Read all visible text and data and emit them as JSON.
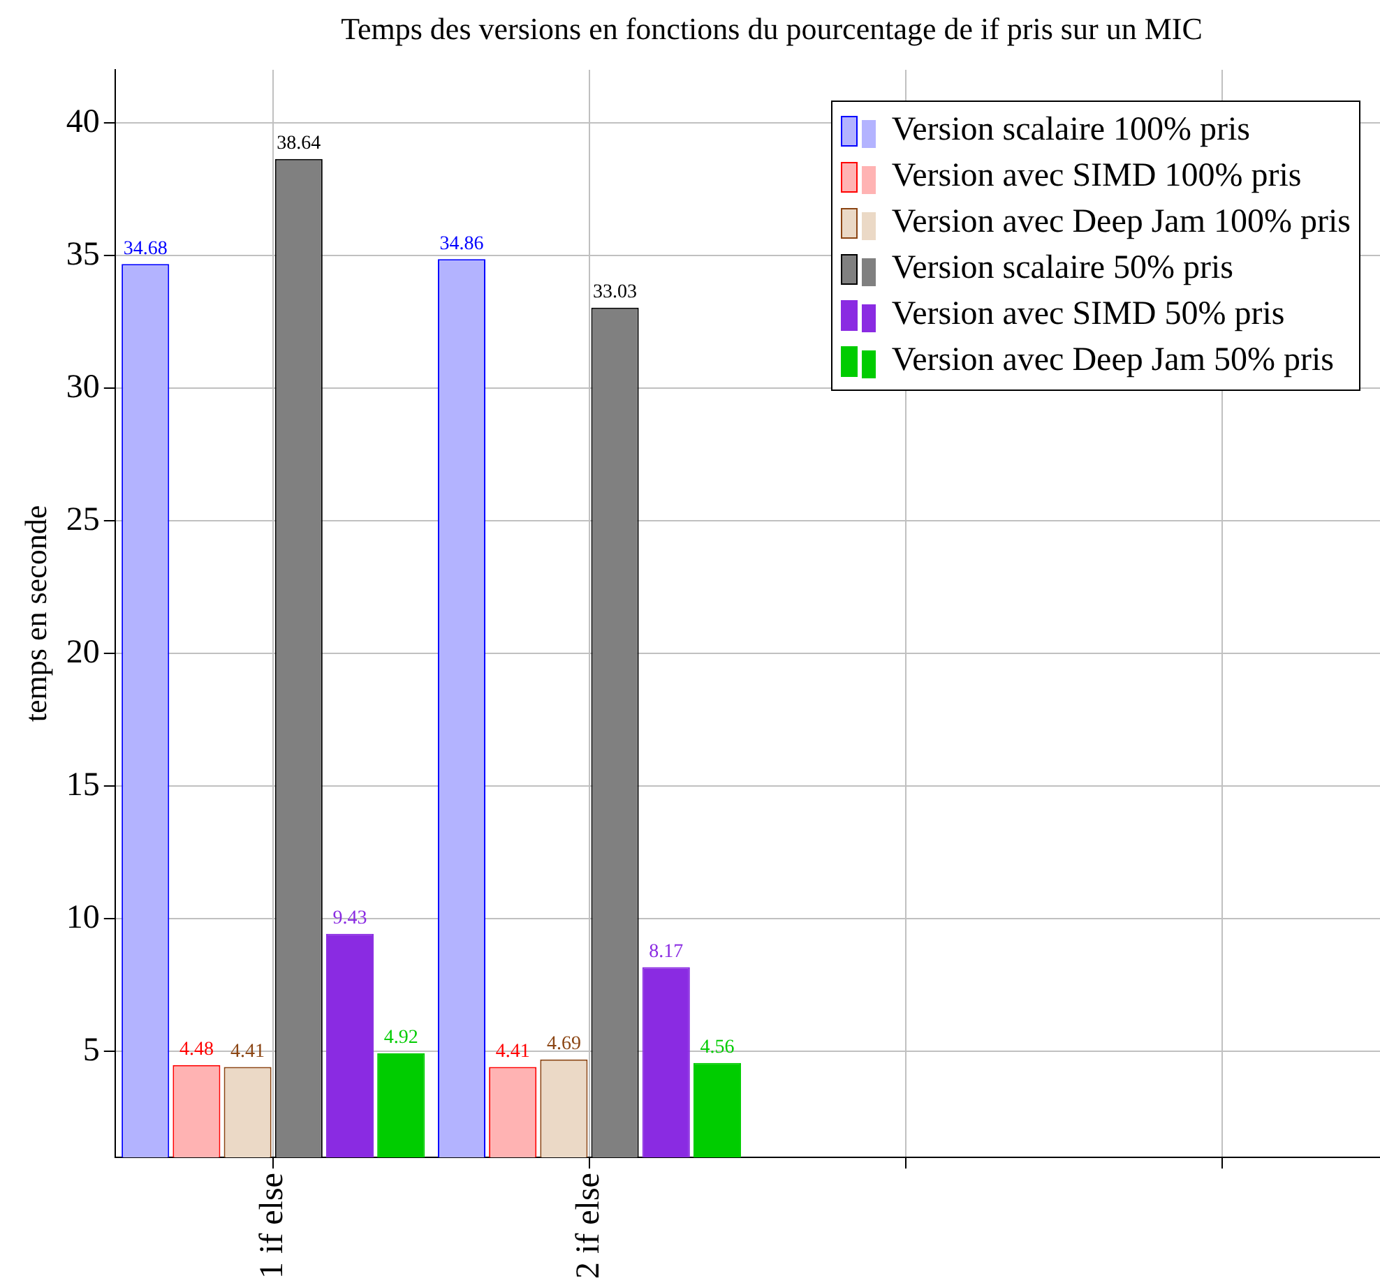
{
  "chart_data": {
    "type": "bar",
    "title": "Temps des versions en fonctions du pourcentage de if pris sur un MIC",
    "ylabel": "temps en seconde",
    "categories": [
      "1 if else",
      "2 if else",
      null,
      null
    ],
    "series": [
      {
        "name": "Version scalaire 100% pris",
        "color": "#b3b3ff",
        "values": [
          34.68,
          34.86,
          null,
          null
        ]
      },
      {
        "name": "Version avec SIMD 100% pris",
        "color": "#ffb3b3",
        "values": [
          4.48,
          4.41,
          null,
          null
        ]
      },
      {
        "name": "Version avec Deep Jam 100% pris",
        "color": "#ebd9c6",
        "values": [
          4.41,
          4.69,
          null,
          null
        ]
      },
      {
        "name": "Version scalaire 50% pris",
        "color": "#808080",
        "values": [
          38.64,
          33.03,
          null,
          null
        ]
      },
      {
        "name": "Version avec SIMD 50% pris",
        "color": "#8a2be2",
        "values": [
          9.43,
          8.17,
          null,
          null
        ]
      },
      {
        "name": "Version avec Deep Jam 50% pris",
        "color": "#00cc00",
        "values": [
          4.92,
          4.56,
          null,
          null
        ]
      }
    ],
    "ylim": [
      1,
      42
    ],
    "yticks": [
      5,
      10,
      15,
      20,
      25,
      30,
      35,
      40
    ],
    "grid": true,
    "legend": "top right",
    "data_labels": true
  }
}
